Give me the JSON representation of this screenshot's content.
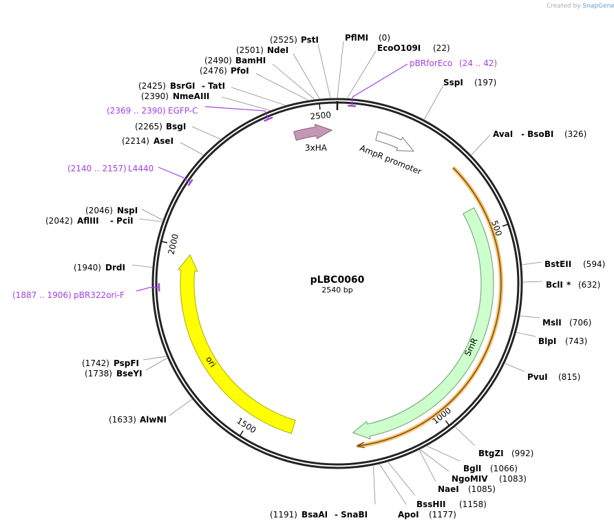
{
  "watermark": {
    "text": "Created by",
    "brand": "SnapGene"
  },
  "plasmid": {
    "name": "pLBC0060",
    "length_label": "2540 bp",
    "length": 2540
  },
  "ticks": [
    {
      "bp": 500,
      "label": "500"
    },
    {
      "bp": 1000,
      "label": "1000"
    },
    {
      "bp": 1500,
      "label": "1500"
    },
    {
      "bp": 2000,
      "label": "2000"
    },
    {
      "bp": 2500,
      "label": "2500"
    }
  ],
  "features": [
    {
      "name": "3xHA",
      "color": "#c497b5"
    },
    {
      "name": "AmpR promoter",
      "color": "#ffffff"
    },
    {
      "name": "SmR",
      "color": "#ccffcc"
    },
    {
      "name": "ori",
      "color": "#ffff00"
    }
  ],
  "enzymes": [
    {
      "name": "PstI",
      "pos": 2525,
      "pos_label": "(2525)"
    },
    {
      "name": "NdeI",
      "pos": 2501,
      "pos_label": "(2501)"
    },
    {
      "name": "BamHI",
      "pos": 2490,
      "pos_label": "(2490)"
    },
    {
      "name": "PfoI",
      "pos": 2476,
      "pos_label": "(2476)"
    },
    {
      "name": "BsrGI",
      "extra": "- TatI",
      "pos": 2425,
      "pos_label": "(2425)"
    },
    {
      "name": "NmeAIII",
      "pos": 2390,
      "pos_label": "(2390)"
    },
    {
      "name": "BsgI",
      "pos": 2265,
      "pos_label": "(2265)"
    },
    {
      "name": "AseI",
      "pos": 2214,
      "pos_label": "(2214)"
    },
    {
      "name": "NspI",
      "pos": 2046,
      "pos_label": "(2046)"
    },
    {
      "name": "AflIII",
      "extra": "- PciI",
      "pos": 2042,
      "pos_label": "(2042)"
    },
    {
      "name": "DrdI",
      "pos": 1940,
      "pos_label": "(1940)"
    },
    {
      "name": "PspFI",
      "pos": 1742,
      "pos_label": "(1742)"
    },
    {
      "name": "BseYI",
      "pos": 1738,
      "pos_label": "(1738)"
    },
    {
      "name": "AlwNI",
      "pos": 1633,
      "pos_label": "(1633)"
    },
    {
      "name": "BsaAI",
      "extra": "- SnaBI",
      "pos": 1191,
      "pos_label": "(1191)"
    },
    {
      "name": "ApoI",
      "pos": 1177,
      "pos_label": "(1177)"
    },
    {
      "name": "BssHII",
      "pos": 1158,
      "pos_label": "(1158)"
    },
    {
      "name": "NaeI",
      "pos": 1085,
      "pos_label": "(1085)"
    },
    {
      "name": "NgoMIV",
      "pos": 1083,
      "pos_label": "(1083)"
    },
    {
      "name": "BglI",
      "pos": 1066,
      "pos_label": "(1066)"
    },
    {
      "name": "BtgZI",
      "pos": 992,
      "pos_label": "(992)"
    },
    {
      "name": "PvuI",
      "pos": 815,
      "pos_label": "(815)"
    },
    {
      "name": "BlpI",
      "pos": 743,
      "pos_label": "(743)"
    },
    {
      "name": "MslI",
      "pos": 706,
      "pos_label": "(706)"
    },
    {
      "name": "BclI",
      "extra": "*",
      "pos": 632,
      "pos_label": "(632)"
    },
    {
      "name": "BstEII",
      "pos": 594,
      "pos_label": "(594)"
    },
    {
      "name": "AvaI",
      "extra": "- BsoBI",
      "pos": 326,
      "pos_label": "(326)"
    },
    {
      "name": "SspI",
      "pos": 197,
      "pos_label": "(197)"
    },
    {
      "name": "EcoO109I",
      "pos": 22,
      "pos_label": "(22)"
    },
    {
      "name": "PflMI",
      "pos": 0,
      "pos_label": "(0)"
    }
  ],
  "primers": [
    {
      "name": "EGFP-C",
      "start": 2369,
      "end": 2390,
      "range_label": "(2369 .. 2390)"
    },
    {
      "name": "L4440",
      "start": 2140,
      "end": 2157,
      "range_label": "(2140 .. 2157)"
    },
    {
      "name": "pBR322ori-F",
      "start": 1887,
      "end": 1906,
      "range_label": "(1887 .. 1906)"
    },
    {
      "name": "pBRforEco",
      "start": 24,
      "end": 42,
      "range_label": "(24 .. 42)"
    }
  ],
  "colors": {
    "primer": "#a23ee6",
    "ring": "#222222",
    "orange_feature": "#f5c26b"
  }
}
